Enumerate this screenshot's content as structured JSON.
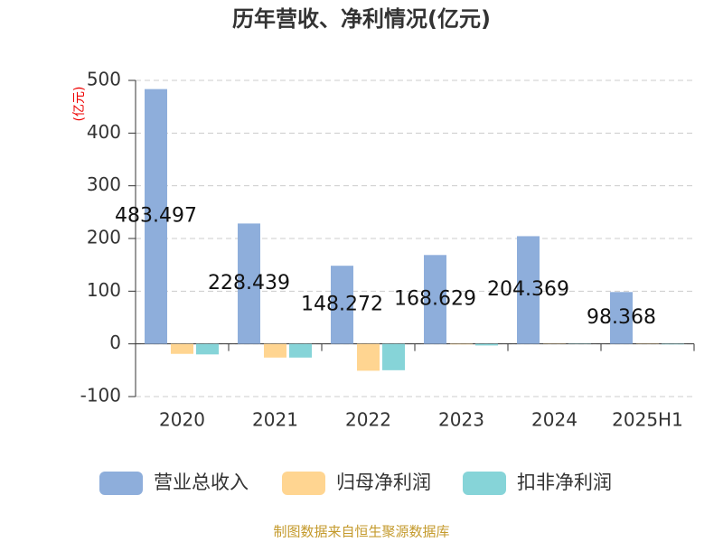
{
  "chart_data": {
    "type": "bar",
    "title": "历年营收、净利情况(亿元)",
    "y_label": "(亿元)",
    "categories": [
      "2020",
      "2021",
      "2022",
      "2023",
      "2024",
      "2025H1"
    ],
    "series": [
      {
        "name": "营业总收入",
        "color": "#8eaedb",
        "values": [
          483.497,
          228.439,
          148.272,
          168.629,
          204.369,
          98.368
        ]
      },
      {
        "name": "归母净利润",
        "color": "#ffd591",
        "values": [
          -19,
          -26,
          -51,
          -1,
          0.5,
          0.5
        ]
      },
      {
        "name": "扣非净利润",
        "color": "#86d4d8",
        "values": [
          -20,
          -26,
          -50,
          -3,
          -0.5,
          -1
        ]
      }
    ],
    "ylim": [
      -100,
      500
    ],
    "yticks": [
      -100,
      0,
      100,
      200,
      300,
      400,
      500
    ],
    "grid": true,
    "legend": "bottom",
    "source": "制图数据来自恒生聚源数据库"
  }
}
